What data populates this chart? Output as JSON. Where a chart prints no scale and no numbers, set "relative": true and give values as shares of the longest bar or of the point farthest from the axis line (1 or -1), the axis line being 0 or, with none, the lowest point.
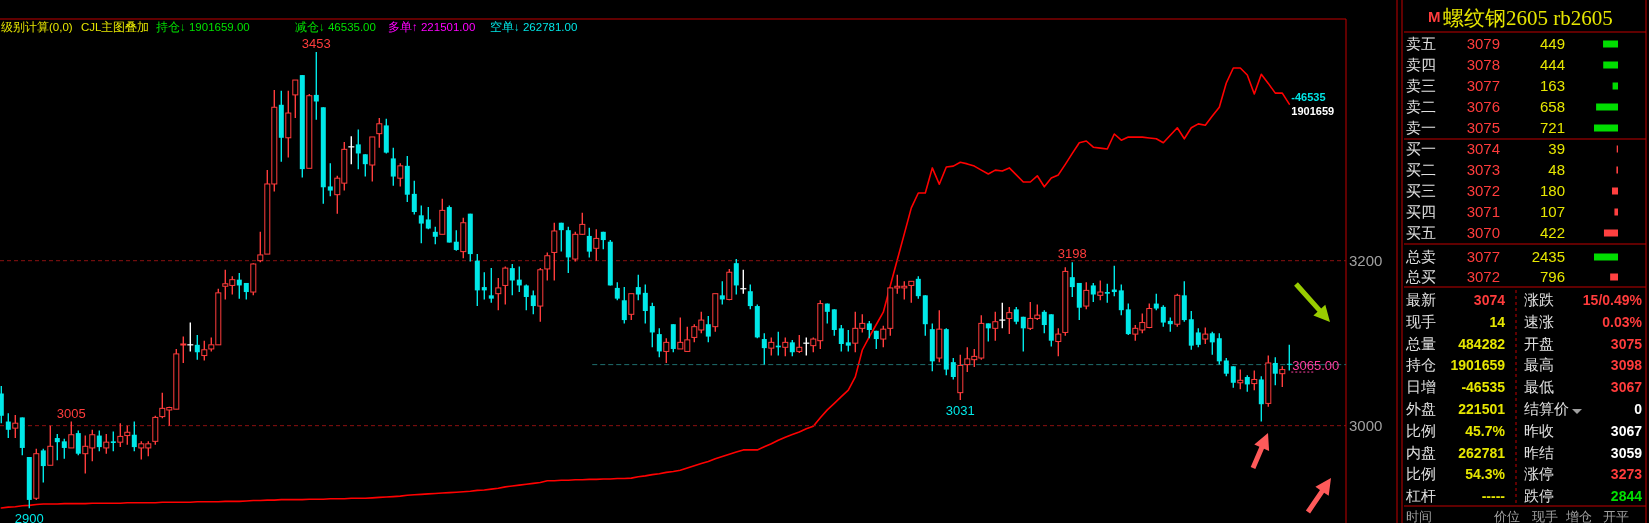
{
  "chart_data": [
    {
      "type": "candlestick",
      "categories": [
        null,
        null,
        null,
        null,
        null,
        null,
        null,
        null,
        null,
        null,
        null,
        null,
        null,
        null,
        null,
        null,
        null,
        null,
        null,
        null,
        null,
        null,
        null,
        null,
        null,
        null,
        null,
        null,
        null,
        null,
        null,
        null,
        null,
        null,
        null,
        null,
        null,
        null,
        null,
        null,
        null,
        null,
        null,
        null,
        null,
        null,
        null,
        null,
        null,
        null,
        null,
        null,
        null,
        null,
        null,
        null,
        null,
        null,
        null,
        null,
        null,
        null,
        null,
        null,
        null,
        null,
        null,
        null,
        null,
        null,
        null,
        null,
        null,
        null,
        null,
        null,
        null,
        null,
        null,
        null,
        null,
        null,
        null,
        null,
        null,
        null,
        null,
        null,
        null,
        null,
        null,
        null,
        null,
        null,
        null,
        null,
        null,
        null,
        null,
        null,
        null,
        null,
        null,
        null,
        null,
        null,
        null,
        null,
        null,
        null,
        null,
        null,
        null,
        null,
        null,
        null,
        null,
        null,
        null,
        null,
        null,
        null,
        null,
        null,
        null,
        null,
        null,
        null,
        null,
        null,
        null,
        null,
        null,
        null,
        null,
        null,
        null,
        null,
        null,
        null,
        null,
        null,
        null,
        null,
        null,
        null,
        null,
        null,
        null,
        null,
        null,
        null,
        null,
        null,
        null,
        null,
        null,
        null,
        null,
        null,
        null,
        null,
        null,
        null,
        null,
        null,
        null,
        null,
        null,
        null,
        null,
        null,
        null,
        null,
        null,
        null,
        null,
        null,
        null,
        null,
        null,
        null,
        null,
        null,
        null
      ],
      "ohlc": [
        [
          3039,
          3048,
          3003,
          3012
        ],
        [
          3005,
          3015,
          2985,
          2995
        ],
        [
          2997,
          3013,
          2985,
          3003
        ],
        [
          3010,
          3010,
          2964,
          2973
        ],
        [
          2962,
          2962,
          2900,
          2910
        ],
        [
          2912,
          2972,
          2910,
          2966
        ],
        [
          2970,
          2972,
          2931,
          2951
        ],
        [
          2952,
          3000,
          2952,
          2975
        ],
        [
          2985,
          2990,
          2958,
          2980
        ],
        [
          2981,
          2984,
          2960,
          2973
        ],
        [
          2973,
          3005,
          2973,
          2989
        ],
        [
          2991,
          2994,
          2964,
          2966
        ],
        [
          2966,
          2988,
          2942,
          2975
        ],
        [
          2973,
          2995,
          2957,
          2989
        ],
        [
          2988,
          2994,
          2969,
          2974
        ],
        [
          2973,
          2990,
          2966,
          2980
        ],
        [
          2981,
          2993,
          2969,
          2979
        ],
        [
          2980,
          3003,
          2974,
          2987
        ],
        [
          2988,
          3000,
          2977,
          2992
        ],
        [
          2989,
          3005,
          2969,
          2974
        ],
        [
          2973,
          2981,
          2959,
          2978
        ],
        [
          2973,
          2981,
          2963,
          2978
        ],
        [
          2981,
          3012,
          2977,
          3010
        ],
        [
          3011,
          3040,
          3009,
          3021
        ],
        [
          3019,
          3023,
          3000,
          3022
        ],
        [
          3020,
          3093,
          3020,
          3087
        ],
        [
          3098,
          3108,
          3076,
          3099
        ],
        [
          3098,
          3125,
          3090,
          3098
        ],
        [
          3098,
          3110,
          3080,
          3089
        ],
        [
          3085,
          3103,
          3079,
          3092
        ],
        [
          3093,
          3107,
          3090,
          3098
        ],
        [
          3098,
          3166,
          3098,
          3161
        ],
        [
          3169,
          3189,
          3153,
          3172
        ],
        [
          3170,
          3181,
          3159,
          3177
        ],
        [
          3177,
          3185,
          3154,
          3170
        ],
        [
          3173,
          3173,
          3153,
          3162
        ],
        [
          3162,
          3197,
          3158,
          3196
        ],
        [
          3200,
          3235,
          3198,
          3207
        ],
        [
          3208,
          3310,
          3208,
          3293
        ],
        [
          3293,
          3407,
          3284,
          3386
        ],
        [
          3389,
          3406,
          3320,
          3349
        ],
        [
          3349,
          3406,
          3325,
          3379
        ],
        [
          3401,
          3419,
          3373,
          3419
        ],
        [
          3425,
          3425,
          3301,
          3311
        ],
        [
          3312,
          3402,
          3312,
          3400
        ],
        [
          3401,
          3453,
          3371,
          3393
        ],
        [
          3386,
          3386,
          3269,
          3289
        ],
        [
          3290,
          3318,
          3278,
          3285
        ],
        [
          3280,
          3303,
          3257,
          3300
        ],
        [
          3294,
          3344,
          3285,
          3335
        ],
        [
          3338,
          3351,
          3317,
          3338
        ],
        [
          3341,
          3359,
          3311,
          3330
        ],
        [
          3329,
          3329,
          3302,
          3317
        ],
        [
          3316,
          3350,
          3296,
          3350
        ],
        [
          3354,
          3373,
          3337,
          3366
        ],
        [
          3364,
          3372,
          3330,
          3331
        ],
        [
          3324,
          3337,
          3291,
          3302
        ],
        [
          3300,
          3318,
          3290,
          3315
        ],
        [
          3315,
          3327,
          3271,
          3280
        ],
        [
          3281,
          3297,
          3256,
          3259
        ],
        [
          3255,
          3267,
          3221,
          3245
        ],
        [
          3250,
          3265,
          3238,
          3239
        ],
        [
          3235,
          3241,
          3220,
          3229
        ],
        [
          3232,
          3275,
          3232,
          3261
        ],
        [
          3265,
          3267,
          3222,
          3222
        ],
        [
          3223,
          3237,
          3212,
          3213
        ],
        [
          3211,
          3252,
          3203,
          3246
        ],
        [
          3257,
          3257,
          3199,
          3208
        ],
        [
          3200,
          3208,
          3145,
          3164
        ],
        [
          3168,
          3186,
          3153,
          3164
        ],
        [
          3158,
          3191,
          3149,
          3154
        ],
        [
          3160,
          3179,
          3140,
          3167
        ],
        [
          3170,
          3193,
          3147,
          3191
        ],
        [
          3191,
          3196,
          3158,
          3176
        ],
        [
          3177,
          3193,
          3162,
          3170
        ],
        [
          3170,
          3171,
          3140,
          3156
        ],
        [
          3158,
          3164,
          3135,
          3145
        ],
        [
          3145,
          3191,
          3126,
          3189
        ],
        [
          3190,
          3210,
          3176,
          3206
        ],
        [
          3210,
          3246,
          3176,
          3236
        ],
        [
          3246,
          3246,
          3211,
          3237
        ],
        [
          3237,
          3241,
          3185,
          3204
        ],
        [
          3202,
          3235,
          3199,
          3232
        ],
        [
          3232,
          3258,
          3231,
          3244
        ],
        [
          3230,
          3240,
          3204,
          3211
        ],
        [
          3215,
          3238,
          3200,
          3227
        ],
        [
          3235,
          3235,
          3214,
          3225
        ],
        [
          3223,
          3225,
          3170,
          3170
        ],
        [
          3167,
          3174,
          3152,
          3154
        ],
        [
          3152,
          3168,
          3124,
          3128
        ],
        [
          3135,
          3160,
          3128,
          3160
        ],
        [
          3168,
          3183,
          3152,
          3159
        ],
        [
          3161,
          3171,
          3124,
          3139
        ],
        [
          3145,
          3149,
          3095,
          3113
        ],
        [
          3111,
          3118,
          3083,
          3090
        ],
        [
          3090,
          3106,
          3076,
          3101
        ],
        [
          3123,
          3123,
          3089,
          3093
        ],
        [
          3093,
          3131,
          3093,
          3101
        ],
        [
          3090,
          3120,
          3090,
          3104
        ],
        [
          3107,
          3123,
          3101,
          3120
        ],
        [
          3116,
          3138,
          3112,
          3128
        ],
        [
          3123,
          3133,
          3101,
          3108
        ],
        [
          3120,
          3160,
          3114,
          3160
        ],
        [
          3158,
          3175,
          3147,
          3153
        ],
        [
          3153,
          3190,
          3152,
          3186
        ],
        [
          3197,
          3202,
          3159,
          3170
        ],
        [
          3166,
          3189,
          3160,
          3166
        ],
        [
          3163,
          3171,
          3141,
          3145
        ],
        [
          3145,
          3147,
          3106,
          3107
        ],
        [
          3105,
          3112,
          3074,
          3094
        ],
        [
          3094,
          3107,
          3085,
          3101
        ],
        [
          3097,
          3114,
          3085,
          3095
        ],
        [
          3095,
          3107,
          3084,
          3101
        ],
        [
          3101,
          3104,
          3084,
          3089
        ],
        [
          3090,
          3110,
          3088,
          3095
        ],
        [
          3100,
          3107,
          3085,
          3100
        ],
        [
          3097,
          3107,
          3089,
          3105
        ],
        [
          3103,
          3152,
          3093,
          3148
        ],
        [
          3148,
          3148,
          3124,
          3138
        ],
        [
          3141,
          3141,
          3109,
          3116
        ],
        [
          3118,
          3122,
          3090,
          3099
        ],
        [
          3101,
          3116,
          3090,
          3097
        ],
        [
          3100,
          3138,
          3089,
          3118
        ],
        [
          3118,
          3135,
          3113,
          3124
        ],
        [
          3124,
          3127,
          3106,
          3116
        ],
        [
          3115,
          3115,
          3093,
          3105
        ],
        [
          3105,
          3121,
          3095,
          3117
        ],
        [
          3118,
          3167,
          3109,
          3167
        ],
        [
          3167,
          3183,
          3160,
          3169
        ],
        [
          3167,
          3175,
          3153,
          3169
        ],
        [
          3170,
          3175,
          3149,
          3175
        ],
        [
          3178,
          3181,
          3154,
          3157
        ],
        [
          3158,
          3158,
          3109,
          3123
        ],
        [
          3117,
          3124,
          3066,
          3078
        ],
        [
          3082,
          3140,
          3077,
          3117
        ],
        [
          3117,
          3118,
          3061,
          3068
        ],
        [
          3077,
          3082,
          3056,
          3059
        ],
        [
          3040,
          3086,
          3031,
          3073
        ],
        [
          3074,
          3095,
          3065,
          3081
        ],
        [
          3080,
          3093,
          3071,
          3084
        ],
        [
          3082,
          3134,
          3080,
          3124
        ],
        [
          3124,
          3124,
          3102,
          3118
        ],
        [
          3118,
          3138,
          3103,
          3126
        ],
        [
          3128,
          3149,
          3118,
          3128
        ],
        [
          3130,
          3144,
          3111,
          3137
        ],
        [
          3141,
          3144,
          3123,
          3126
        ],
        [
          3132,
          3132,
          3090,
          3118
        ],
        [
          3118,
          3150,
          3116,
          3130
        ],
        [
          3130,
          3147,
          3128,
          3134
        ],
        [
          3138,
          3140,
          3112,
          3122
        ],
        [
          3135,
          3135,
          3096,
          3103
        ],
        [
          3102,
          3118,
          3084,
          3111
        ],
        [
          3113,
          3192,
          3109,
          3187
        ],
        [
          3180,
          3198,
          3156,
          3168
        ],
        [
          3173,
          3173,
          3128,
          3143
        ],
        [
          3145,
          3174,
          3141,
          3164
        ],
        [
          3170,
          3173,
          3150,
          3159
        ],
        [
          3158,
          3176,
          3152,
          3162
        ],
        [
          3162,
          3172,
          3149,
          3160
        ],
        [
          3165,
          3194,
          3157,
          3162
        ],
        [
          3164,
          3171,
          3134,
          3140
        ],
        [
          3141,
          3148,
          3110,
          3111
        ],
        [
          3111,
          3122,
          3103,
          3118
        ],
        [
          3116,
          3136,
          3112,
          3125
        ],
        [
          3119,
          3148,
          3118,
          3142
        ],
        [
          3148,
          3160,
          3140,
          3142
        ],
        [
          3144,
          3146,
          3120,
          3125
        ],
        [
          3127,
          3131,
          3114,
          3123
        ],
        [
          3123,
          3160,
          3120,
          3158
        ],
        [
          3158,
          3175,
          3126,
          3128
        ],
        [
          3129,
          3139,
          3092,
          3097
        ],
        [
          3113,
          3118,
          3095,
          3098
        ],
        [
          3105,
          3119,
          3099,
          3111
        ],
        [
          3112,
          3114,
          3086,
          3101
        ],
        [
          3106,
          3112,
          3074,
          3078
        ],
        [
          3079,
          3082,
          3060,
          3063
        ],
        [
          3072,
          3072,
          3046,
          3052
        ],
        [
          3052,
          3068,
          3044,
          3055
        ],
        [
          3059,
          3061,
          3041,
          3050
        ],
        [
          3051,
          3067,
          3043,
          3056
        ],
        [
          3056,
          3060,
          3005,
          3026
        ],
        [
          3027,
          3085,
          3023,
          3076
        ],
        [
          3076,
          3083,
          3049,
          3063
        ],
        [
          3063,
          3072,
          3047,
          3068
        ],
        [
          3075,
          3098,
          3067,
          3074
        ]
      ],
      "ylim": [
        2882,
        3493
      ],
      "yticks": [
        3000,
        3200
      ],
      "grid": "y",
      "tick_labels": "y",
      "annotations": [
        "级别计算(0,0)",
        "CJL主图叠加",
        "持仓↓ 1901659.00",
        "减仓↓ 46535.00",
        "多单↑ 221501.00",
        "空单↓ 262781.00",
        {
          "text": "3453",
          "y": 3453
        },
        {
          "text": "2900",
          "y": 2900
        },
        {
          "text": "3198",
          "y": 3198
        },
        {
          "text": "3031",
          "y": 3031
        },
        {
          "text": "3005",
          "y": 3005
        }
      ],
      "ref_lines": [
        {
          "axis": "y",
          "value": 3074,
          "color": "#1f6f6f",
          "line_style": "dashed"
        },
        {
          "axis": "y",
          "value": 3065,
          "label": "3065.00",
          "color": "#ff3fa0",
          "line_style": "dotted"
        }
      ]
    },
    {
      "type": "line",
      "relative": true,
      "series": [
        {
          "color": "#ff0000",
          "values": [
            0,
            0.002,
            0.003,
            0.005,
            0.006,
            0.008,
            0.009,
            0.009,
            0.009,
            0.01,
            0.01,
            0.01,
            0.01,
            0.011,
            0.011,
            0.011,
            0.011,
            0.011,
            0.012,
            0.012,
            0.012,
            0.012,
            0.012,
            0.013,
            0.013,
            0.013,
            0.013,
            0.013,
            0.014,
            0.014,
            0.014,
            0.014,
            0.015,
            0.015,
            0.015,
            0.016,
            0.017,
            0.017,
            0.018,
            0.018,
            0.019,
            0.019,
            0.019,
            0.019,
            0.02,
            0.02,
            0.02,
            0.021,
            0.021,
            0.021,
            0.022,
            0.022,
            0.022,
            0.023,
            0.024,
            0.025,
            0.026,
            0.027,
            0.029,
            0.03,
            0.031,
            0.032,
            0.033,
            0.034,
            0.035,
            0.036,
            0.037,
            0.038,
            0.04,
            0.041,
            0.043,
            0.045,
            0.048,
            0.05,
            0.052,
            0.054,
            0.056,
            0.058,
            0.062,
            0.062,
            0.063,
            0.063,
            0.064,
            0.064,
            0.065,
            0.065,
            0.066,
            0.066,
            0.067,
            0.067,
            0.068,
            0.071,
            0.073,
            0.076,
            0.078,
            0.081,
            0.083,
            0.086,
            0.091,
            0.096,
            0.101,
            0.106,
            0.112,
            0.117,
            0.122,
            0.127,
            0.132,
            0.132,
            0.132,
            0.139,
            0.146,
            0.154,
            0.161,
            0.167,
            0.173,
            0.18,
            0.186,
            0.205,
            0.223,
            0.238,
            0.253,
            0.268,
            0.298,
            0.359,
            0.389,
            0.417,
            0.445,
            0.505,
            0.564,
            0.623,
            0.682,
            0.716,
            0.716,
            0.773,
            0.736,
            0.775,
            0.777,
            0.786,
            0.782,
            0.777,
            0.768,
            0.759,
            0.768,
            0.766,
            0.773,
            0.757,
            0.741,
            0.741,
            0.755,
            0.73,
            0.75,
            0.757,
            0.781,
            0.806,
            0.83,
            0.834,
            0.82,
            0.818,
            0.816,
            0.85,
            0.836,
            0.843,
            0.843,
            0.843,
            0.841,
            0.839,
            0.83,
            0.847,
            0.864,
            0.839,
            0.864,
            0.873,
            0.87,
            0.891,
            0.911,
            0.966,
            1,
            1,
            0.984,
            0.941,
            0.986,
            0.965,
            0.943,
            0.943,
            0.918
          ]
        }
      ],
      "categories": [
        null,
        null,
        null,
        null,
        null,
        null,
        null,
        null,
        null,
        null,
        null,
        null,
        null,
        null,
        null,
        null,
        null,
        null,
        null,
        null,
        null,
        null,
        null,
        null,
        null,
        null,
        null,
        null,
        null,
        null,
        null,
        null,
        null,
        null,
        null,
        null,
        null,
        null,
        null,
        null,
        null,
        null,
        null,
        null,
        null,
        null,
        null,
        null,
        null,
        null,
        null,
        null,
        null,
        null,
        null,
        null,
        null,
        null,
        null,
        null,
        null,
        null,
        null,
        null,
        null,
        null,
        null,
        null,
        null,
        null,
        null,
        null,
        null,
        null,
        null,
        null,
        null,
        null,
        null,
        null,
        null,
        null,
        null,
        null,
        null,
        null,
        null,
        null,
        null,
        null,
        null,
        null,
        null,
        null,
        null,
        null,
        null,
        null,
        null,
        null,
        null,
        null,
        null,
        null,
        null,
        null,
        null,
        null,
        null,
        null,
        null,
        null,
        null,
        null,
        null,
        null,
        null,
        null,
        null,
        null,
        null,
        null,
        null,
        null,
        null,
        null,
        null,
        null,
        null,
        null,
        null,
        null,
        null,
        null,
        null,
        null,
        null,
        null,
        null,
        null,
        null,
        null,
        null,
        null,
        null,
        null,
        null,
        null,
        null,
        null,
        null,
        null,
        null,
        null,
        null,
        null,
        null,
        null,
        null,
        null,
        null,
        null,
        null,
        null,
        null,
        null,
        null,
        null,
        null,
        null,
        null,
        null,
        null,
        null,
        null,
        null,
        null,
        null,
        null,
        null,
        null,
        null,
        null,
        null,
        null
      ],
      "annotations": [
        "-46535",
        "1901659"
      ]
    },
    {
      "type": "bar",
      "orientation": "horizontal",
      "title": "螺纹钢2605 rb2605",
      "categories": [
        "卖五",
        "卖四",
        "卖三",
        "卖二",
        "卖一",
        "买一",
        "买二",
        "买三",
        "买四",
        "买五"
      ],
      "values": [
        449,
        444,
        163,
        658,
        721,
        39,
        48,
        180,
        107,
        422
      ],
      "colors": [
        "#00dd00",
        "#00dd00",
        "#00dd00",
        "#00dd00",
        "#00dd00",
        "#ff4040",
        "#ff4040",
        "#ff4040",
        "#ff4040",
        "#ff4040"
      ],
      "data_labels": true,
      "annotations": [
        "3079",
        "3078",
        "3077",
        "3076",
        "3075",
        "3074",
        "3073",
        "3072",
        "3071",
        "3070",
        "M"
      ]
    },
    {
      "type": "bar",
      "orientation": "horizontal",
      "categories": [
        "总卖",
        "总买"
      ],
      "values": [
        2435,
        796
      ],
      "colors": [
        "#00dd00",
        "#ff4040"
      ],
      "data_labels": true,
      "annotations": [
        "3077",
        "3072"
      ]
    },
    {
      "type": "other",
      "annotations": [
        "最新",
        "3074",
        "现手",
        "14",
        "总量",
        "484282",
        "持仓",
        "1901659",
        "日增",
        "-46535",
        "外盘",
        "221501",
        "比例",
        "45.7%",
        "内盘",
        "262781",
        "比例",
        "54.3%",
        "杠杆",
        "-----",
        "涨跌",
        "15/0.49%",
        "速涨",
        "0.03%",
        "开盘",
        "3075",
        "最高",
        "3098",
        "最低",
        "3067",
        "结算价",
        "0",
        "昨收",
        "3067",
        "昨结",
        "3059",
        "涨停",
        "3273",
        "跌停",
        "2844",
        "时间",
        "价位",
        "现手",
        "增仓",
        "开平"
      ]
    }
  ]
}
